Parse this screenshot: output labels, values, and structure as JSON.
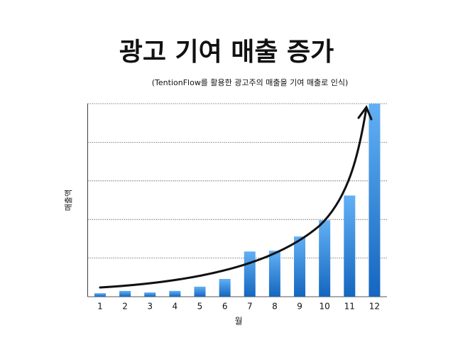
{
  "chart_data": {
    "type": "bar",
    "title": "광고 기여 매출 증가",
    "subtitle": "(TentionFlow를 활용한 광고주의 매출을 기여 매출로 인식)",
    "x_label": "월",
    "y_label": "매출액",
    "categories": [
      "1",
      "2",
      "3",
      "4",
      "5",
      "6",
      "7",
      "8",
      "9",
      "10",
      "11",
      "12"
    ],
    "values": [
      0.09,
      0.15,
      0.11,
      0.15,
      0.26,
      0.46,
      1.17,
      1.19,
      1.56,
      1.98,
      2.62,
      5.0
    ],
    "color": "#3d8fe0",
    "ylim": [
      0,
      5
    ],
    "yticks": [
      1,
      2,
      3,
      4,
      5
    ],
    "grid": true
  }
}
